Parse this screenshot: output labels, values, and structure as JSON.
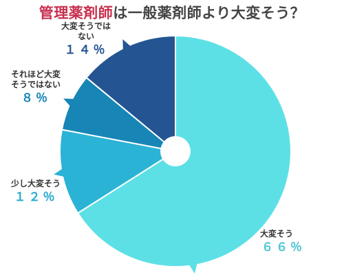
{
  "title": {
    "highlight": "管理薬剤師",
    "rest": "は一般薬剤師より大変そう？"
  },
  "chart_data": {
    "type": "pie",
    "donut_hole": true,
    "start_angle": "12 o'clock, clockwise",
    "slices": [
      {
        "label_lines": [
          "大変そう"
        ],
        "percent_text": "６６％",
        "value": 66,
        "color": "#5ce0e6",
        "text_color": "#4fc7d6"
      },
      {
        "label_lines": [
          "少し大変そう"
        ],
        "percent_text": "１２％",
        "value": 12,
        "color": "#2bb3d6",
        "text_color": "#27a9cf"
      },
      {
        "label_lines": [
          "それほど大変",
          "そうではない"
        ],
        "percent_text": "８％",
        "value": 8,
        "color": "#1786b6",
        "text_color": "#1786b6"
      },
      {
        "label_lines": [
          "大変そうでは",
          "ない"
        ],
        "percent_text": "１４％",
        "value": 14,
        "color": "#245592",
        "text_color": "#245592"
      }
    ]
  }
}
